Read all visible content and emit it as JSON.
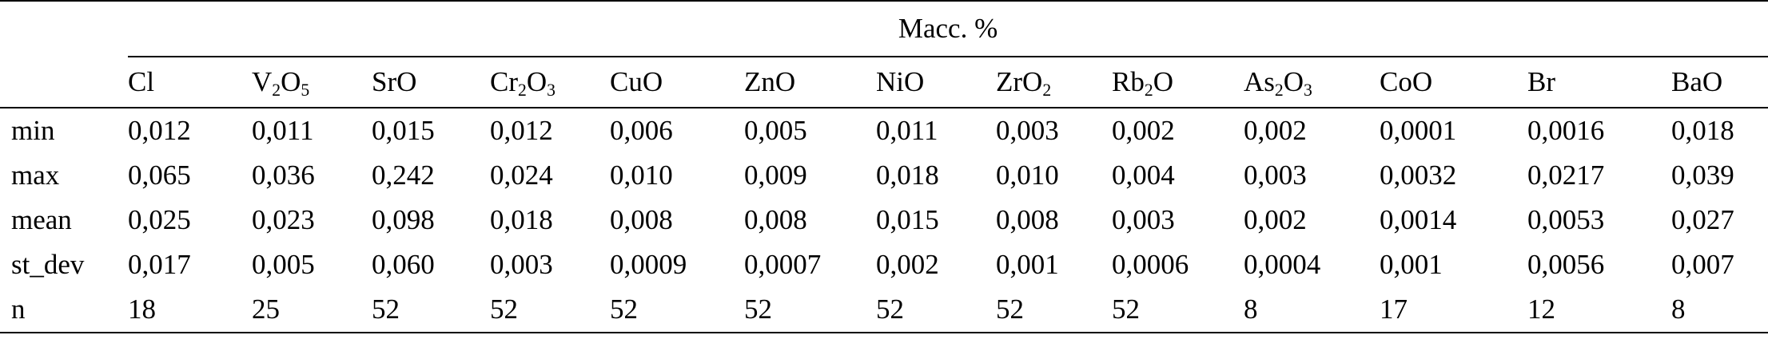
{
  "table": {
    "super_header": "Масс. %",
    "columns": [
      {
        "base": "Cl",
        "html": "Cl"
      },
      {
        "base": "V2O5",
        "html": "V<sub>2</sub>O<sub>5</sub>"
      },
      {
        "base": "SrO",
        "html": "SrO"
      },
      {
        "base": "Cr2O3",
        "html": "Cr<sub>2</sub>O<sub>3</sub>"
      },
      {
        "base": "CuO",
        "html": "CuO"
      },
      {
        "base": "ZnO",
        "html": "ZnO"
      },
      {
        "base": "NiO",
        "html": "NiO"
      },
      {
        "base": "ZrO2",
        "html": "ZrO<sub>2</sub>"
      },
      {
        "base": "Rb2O",
        "html": "Rb<sub>2</sub>O"
      },
      {
        "base": "As2O3",
        "html": "As<sub>2</sub>O<sub>3</sub>"
      },
      {
        "base": "CoO",
        "html": "CoO"
      },
      {
        "base": "Br",
        "html": "Br"
      },
      {
        "base": "BaO",
        "html": "BaO"
      }
    ],
    "rows": [
      {
        "label": "min",
        "values": [
          "0,012",
          "0,011",
          "0,015",
          "0,012",
          "0,006",
          "0,005",
          "0,011",
          "0,003",
          "0,002",
          "0,002",
          "0,0001",
          "0,0016",
          "0,018"
        ]
      },
      {
        "label": "max",
        "values": [
          "0,065",
          "0,036",
          "0,242",
          "0,024",
          "0,010",
          "0,009",
          "0,018",
          "0,010",
          "0,004",
          "0,003",
          "0,0032",
          "0,0217",
          "0,039"
        ]
      },
      {
        "label": "mean",
        "values": [
          "0,025",
          "0,023",
          "0,098",
          "0,018",
          "0,008",
          "0,008",
          "0,015",
          "0,008",
          "0,003",
          "0,002",
          "0,0014",
          "0,0053",
          "0,027"
        ]
      },
      {
        "label": "st_dev",
        "values": [
          "0,017",
          "0,005",
          "0,060",
          "0,003",
          "0,0009",
          "0,0007",
          "0,002",
          "0,001",
          "0,0006",
          "0,0004",
          "0,001",
          "0,0056",
          "0,007"
        ]
      },
      {
        "label": "n",
        "values": [
          "18",
          "25",
          "52",
          "52",
          "52",
          "52",
          "52",
          "52",
          "52",
          "8",
          "17",
          "12",
          "8"
        ]
      }
    ]
  }
}
